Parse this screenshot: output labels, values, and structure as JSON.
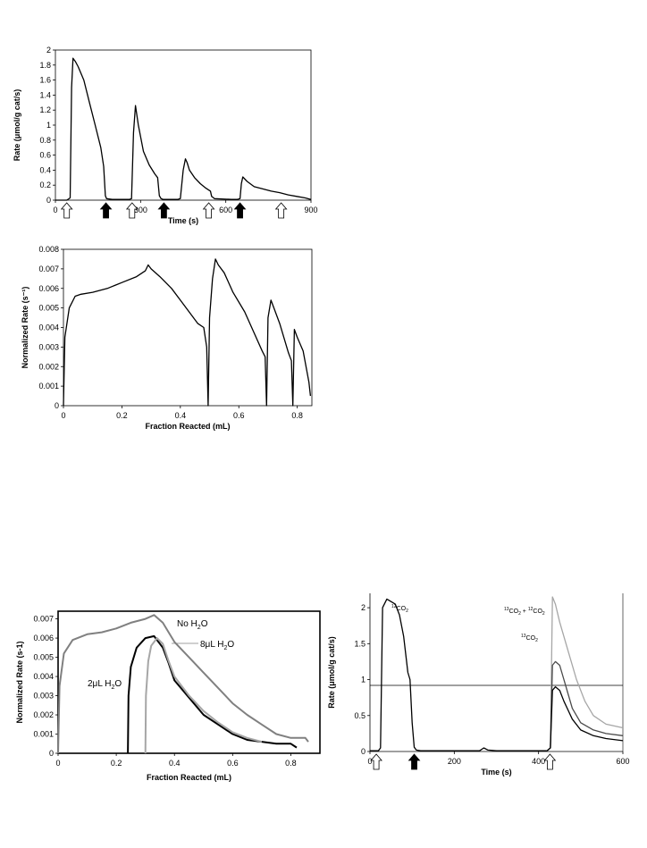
{
  "colors": {
    "black": "#000000",
    "gray": "#808080",
    "light_gray": "#a6a6a6",
    "dark_gray": "#4a4a4a"
  },
  "chart_data": [
    {
      "id": "c1",
      "type": "line",
      "xlabel": "Time (s)",
      "ylabel": "Rate (μmol/g cat/s)",
      "xlim": [
        0,
        900
      ],
      "ylim": [
        0,
        2
      ],
      "x_ticks": [
        0,
        300,
        600,
        900
      ],
      "y_ticks": [
        0,
        0.2,
        0.4,
        0.6,
        0.8,
        1,
        1.2,
        1.4,
        1.6,
        1.8,
        2
      ],
      "y_tick_labels": [
        "0",
        "0.2",
        "0.4",
        "0.6",
        "0.8",
        "1",
        "1.2",
        "1.4",
        "1.6",
        "1.8",
        "2"
      ],
      "grid": false,
      "series": [
        {
          "color": "#000000",
          "x": [
            0,
            40,
            52,
            57,
            62,
            70,
            80,
            100,
            120,
            140,
            160,
            170,
            176,
            180,
            200,
            220,
            260,
            268,
            275,
            282,
            292,
            310,
            330,
            350,
            360,
            366,
            372,
            380,
            400,
            430,
            440,
            450,
            458,
            464,
            472,
            490,
            510,
            530,
            546,
            550,
            560,
            620,
            640,
            650,
            655,
            660,
            675,
            700,
            730,
            760,
            790,
            820,
            850,
            880,
            900
          ],
          "y": [
            0,
            0,
            0.03,
            1.5,
            1.89,
            1.85,
            1.78,
            1.6,
            1.3,
            1.0,
            0.7,
            0.45,
            0.06,
            0.02,
            0.01,
            0.01,
            0.01,
            0.02,
            0.9,
            1.26,
            1.0,
            0.65,
            0.47,
            0.35,
            0.3,
            0.06,
            0.02,
            0.01,
            0.01,
            0.01,
            0.02,
            0.4,
            0.55,
            0.5,
            0.4,
            0.3,
            0.22,
            0.16,
            0.12,
            0.05,
            0.02,
            0.01,
            0.01,
            0.02,
            0.22,
            0.31,
            0.25,
            0.18,
            0.15,
            0.12,
            0.1,
            0.07,
            0.05,
            0.03,
            0.01
          ]
        }
      ],
      "markers": [
        {
          "x": 40,
          "kind": "open"
        },
        {
          "x": 178,
          "kind": "filled"
        },
        {
          "x": 270,
          "kind": "open"
        },
        {
          "x": 382,
          "kind": "filled"
        },
        {
          "x": 540,
          "kind": "open"
        },
        {
          "x": 650,
          "kind": "filled"
        },
        {
          "x": 795,
          "kind": "open"
        }
      ]
    },
    {
      "id": "c2",
      "type": "line",
      "xlabel": "Fraction Reacted (mL)",
      "ylabel": "Normalized Rate (s⁻¹)",
      "xlim": [
        0,
        0.85
      ],
      "ylim": [
        0,
        0.008
      ],
      "x_ticks": [
        0,
        0.2,
        0.4,
        0.6,
        0.8
      ],
      "y_ticks": [
        0,
        0.001,
        0.002,
        0.003,
        0.004,
        0.005,
        0.006,
        0.007,
        0.008
      ],
      "y_tick_labels": [
        "0",
        "0.001",
        "0.002",
        "0.003",
        "0.004",
        "0.005",
        "0.006",
        "0.007",
        "0.008"
      ],
      "grid": false,
      "series": [
        {
          "color": "#000000",
          "x": [
            0,
            0.005,
            0.02,
            0.04,
            0.06,
            0.1,
            0.15,
            0.2,
            0.25,
            0.28,
            0.29,
            0.3,
            0.33,
            0.37,
            0.4,
            0.43,
            0.46,
            0.48,
            0.49,
            0.495,
            0.5,
            0.51,
            0.52,
            0.53,
            0.55,
            0.58,
            0.62,
            0.65,
            0.68,
            0.69,
            0.695,
            0.7,
            0.71,
            0.72,
            0.74,
            0.77,
            0.78,
            0.785,
            0.79,
            0.8,
            0.82,
            0.84,
            0.845
          ],
          "y": [
            0,
            0.0035,
            0.005,
            0.0056,
            0.0057,
            0.0058,
            0.006,
            0.0063,
            0.0066,
            0.0069,
            0.0072,
            0.007,
            0.0066,
            0.006,
            0.0054,
            0.0048,
            0.0042,
            0.004,
            0.003,
            0,
            0.0045,
            0.0065,
            0.0075,
            0.0072,
            0.0068,
            0.0058,
            0.0048,
            0.0038,
            0.0028,
            0.0025,
            0,
            0.0045,
            0.0054,
            0.005,
            0.0042,
            0.0027,
            0.0023,
            0,
            0.0039,
            0.0035,
            0.0028,
            0.0012,
            0.0005
          ]
        }
      ]
    },
    {
      "id": "c3",
      "type": "line",
      "xlabel": "Fraction Reacted (mL)",
      "ylabel": "Normalized Rate (s-1)",
      "xlim": [
        0,
        0.9
      ],
      "ylim": [
        0,
        0.0074
      ],
      "x_ticks": [
        0,
        0.2,
        0.4,
        0.6,
        0.8
      ],
      "y_ticks": [
        0,
        0.001,
        0.002,
        0.003,
        0.004,
        0.005,
        0.006,
        0.007
      ],
      "y_tick_labels": [
        "0",
        "0.001",
        "0.002",
        "0.003",
        "0.004",
        "0.005",
        "0.006",
        "0.007"
      ],
      "grid": false,
      "series": [
        {
          "name": "No H₂O",
          "color": "#808080",
          "x": [
            0,
            0.005,
            0.02,
            0.05,
            0.1,
            0.15,
            0.2,
            0.25,
            0.3,
            0.33,
            0.36,
            0.4,
            0.45,
            0.5,
            0.55,
            0.6,
            0.65,
            0.7,
            0.75,
            0.8,
            0.85,
            0.86
          ],
          "y": [
            0,
            0.0035,
            0.0052,
            0.0059,
            0.0062,
            0.0063,
            0.0065,
            0.0068,
            0.007,
            0.0072,
            0.0068,
            0.0058,
            0.005,
            0.0042,
            0.0034,
            0.0026,
            0.002,
            0.0015,
            0.001,
            0.0008,
            0.0008,
            0.0006
          ]
        },
        {
          "name": "2μL H₂O",
          "color": "#000000",
          "x": [
            0.24,
            0.242,
            0.25,
            0.27,
            0.3,
            0.33,
            0.36,
            0.38,
            0.4,
            0.45,
            0.5,
            0.55,
            0.6,
            0.65,
            0.7,
            0.75,
            0.8,
            0.82
          ],
          "y": [
            0,
            0.003,
            0.0045,
            0.0055,
            0.006,
            0.0061,
            0.0055,
            0.0047,
            0.0038,
            0.0029,
            0.002,
            0.0015,
            0.001,
            0.0007,
            0.0006,
            0.0005,
            0.0005,
            0.0003
          ]
        },
        {
          "name": "8μL H₂O",
          "color": "#a6a6a6",
          "x": [
            0.3,
            0.302,
            0.31,
            0.32,
            0.34,
            0.36,
            0.38,
            0.4,
            0.45,
            0.5,
            0.55,
            0.6,
            0.65,
            0.7
          ],
          "y": [
            0,
            0.003,
            0.0048,
            0.0056,
            0.006,
            0.0057,
            0.0048,
            0.004,
            0.003,
            0.0022,
            0.0016,
            0.0011,
            0.0008,
            0.0006
          ]
        }
      ],
      "annotations": [
        {
          "text": "No H",
          "sub": "2",
          "after": "O"
        },
        {
          "text": "8μL H",
          "sub": "2",
          "after": "O"
        },
        {
          "text": "2μL H",
          "sub": "2",
          "after": "O"
        }
      ]
    },
    {
      "id": "c4",
      "type": "line",
      "xlabel": "Time (s)",
      "ylabel": "Rate (μmol/g cat/s)",
      "xlim": [
        0,
        600
      ],
      "ylim": [
        0,
        2.2
      ],
      "x_ticks": [
        0,
        200,
        400,
        600
      ],
      "y_ticks": [
        0,
        0.5,
        1,
        1.5,
        2
      ],
      "y_tick_labels": [
        "0",
        "0.5",
        "1",
        "1.5",
        "2"
      ],
      "grid": false,
      "hline": 0.92,
      "series": [
        {
          "name": "¹²CO₂",
          "color": "#000000",
          "x": [
            0,
            20,
            25,
            30,
            40,
            60,
            70,
            80,
            90,
            95,
            100,
            105,
            110,
            120,
            150,
            200,
            260,
            270,
            280,
            300,
            350,
            400,
            420
          ],
          "y": [
            0.01,
            0.01,
            0.05,
            2.0,
            2.12,
            2.05,
            1.9,
            1.6,
            1.1,
            1.0,
            0.4,
            0.06,
            0.02,
            0.01,
            0.01,
            0.01,
            0.01,
            0.05,
            0.02,
            0.01,
            0.01,
            0.01,
            0.01
          ]
        },
        {
          "name": "¹³CO₂ + ¹²CO₂",
          "color": "#a6a6a6",
          "x": [
            420,
            428,
            433,
            440,
            450,
            470,
            490,
            510,
            530,
            560,
            600
          ],
          "y": [
            0.01,
            0.05,
            2.15,
            2.05,
            1.8,
            1.4,
            1.0,
            0.7,
            0.5,
            0.38,
            0.33
          ]
        },
        {
          "name": "¹³CO₂",
          "color": "#4a4a4a",
          "x": [
            420,
            428,
            433,
            440,
            450,
            460,
            480,
            500,
            530,
            560,
            600
          ],
          "y": [
            0.01,
            0.05,
            1.2,
            1.25,
            1.2,
            1.0,
            0.6,
            0.4,
            0.3,
            0.25,
            0.22
          ]
        },
        {
          "color": "#000000",
          "x": [
            420,
            428,
            433,
            440,
            450,
            460,
            480,
            500,
            530,
            560,
            600
          ],
          "y": [
            0.01,
            0.05,
            0.85,
            0.9,
            0.85,
            0.7,
            0.45,
            0.3,
            0.22,
            0.18,
            0.15
          ]
        }
      ],
      "markers": [
        {
          "x": 15,
          "kind": "open"
        },
        {
          "x": 105,
          "kind": "filled"
        },
        {
          "x": 427,
          "kind": "open"
        }
      ],
      "annotations": [
        {
          "pre": "12",
          "text": "CO",
          "sub": "2"
        },
        {
          "pre": "13",
          "text": "CO",
          "sub": "2",
          "mid": " + ",
          "pre2": "12",
          "text2": "CO",
          "sub2": "2"
        },
        {
          "pre": "13",
          "text": "CO",
          "sub": "2"
        }
      ]
    }
  ]
}
